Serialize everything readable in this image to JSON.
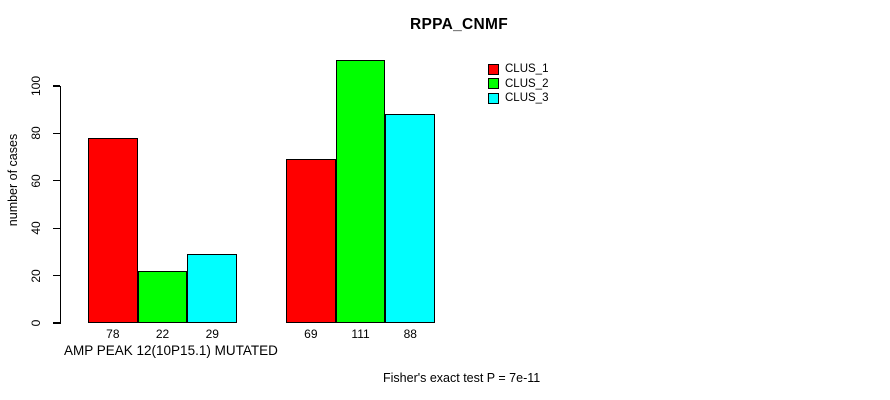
{
  "chart_data": {
    "type": "bar",
    "title": "RPPA_CNMF",
    "ylabel": "number of cases",
    "xlabel": "AMP PEAK 12(10P15.1) MUTATED",
    "footnote": "Fisher's exact test P = 7e-11",
    "categories": [
      "",
      ""
    ],
    "series": [
      {
        "name": "CLUS_1",
        "color": "#ff0000",
        "values": [
          78,
          69
        ]
      },
      {
        "name": "CLUS_2",
        "color": "#00ff00",
        "values": [
          22,
          111
        ]
      },
      {
        "name": "CLUS_3",
        "color": "#00ffff",
        "values": [
          29,
          88
        ]
      }
    ],
    "yticks": [
      0,
      20,
      40,
      60,
      80,
      100
    ],
    "ylim": [
      0,
      115
    ],
    "grid": false,
    "bar_value_labels": true,
    "legend_position": "top-right",
    "legend_entries": [
      {
        "label": "CLUS_1",
        "color": "#ff0000"
      },
      {
        "label": "CLUS_2",
        "color": "#00ff00"
      },
      {
        "label": "CLUS_3",
        "color": "#00ffff"
      }
    ]
  }
}
